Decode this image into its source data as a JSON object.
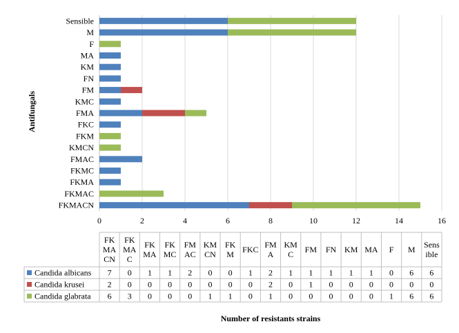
{
  "chart_data": {
    "type": "bar",
    "orientation": "horizontal",
    "stacked": true,
    "categories": [
      "FKMACN",
      "FKMAC",
      "FKMA",
      "FKMC",
      "FMAC",
      "KMCN",
      "FKM",
      "FKC",
      "FMA",
      "KMC",
      "FM",
      "FN",
      "KM",
      "MA",
      "F",
      "M",
      "Sensible"
    ],
    "table_headers": [
      [
        "FK",
        "MA",
        "CN"
      ],
      [
        "FK",
        "MA",
        "C"
      ],
      [
        "FK",
        "MA"
      ],
      [
        "FK",
        "MC"
      ],
      [
        "FM",
        "AC"
      ],
      [
        "KM",
        "CN"
      ],
      [
        "FK",
        "M"
      ],
      [
        "FKC"
      ],
      [
        "FM",
        "A"
      ],
      [
        "KM",
        "C"
      ],
      [
        "FM"
      ],
      [
        "FN"
      ],
      [
        "KM"
      ],
      [
        "MA"
      ],
      [
        "F"
      ],
      [
        "M"
      ],
      [
        "Sens",
        "ible"
      ]
    ],
    "series": [
      {
        "name": "Candida albicans",
        "color": "#4f81bd",
        "values": [
          7,
          0,
          1,
          1,
          2,
          0,
          0,
          1,
          2,
          1,
          1,
          1,
          1,
          1,
          0,
          6,
          6
        ]
      },
      {
        "name": "Candida krusei",
        "color": "#c0504d",
        "values": [
          2,
          0,
          0,
          0,
          0,
          0,
          0,
          0,
          2,
          0,
          1,
          0,
          0,
          0,
          0,
          0,
          0
        ]
      },
      {
        "name": "Candida glabrata",
        "color": "#9bbb59",
        "values": [
          6,
          3,
          0,
          0,
          0,
          1,
          1,
          0,
          1,
          0,
          0,
          0,
          0,
          0,
          1,
          6,
          6
        ]
      }
    ],
    "xlim": [
      0,
      16
    ],
    "xticks": [
      0,
      2,
      4,
      6,
      8,
      10,
      12,
      14,
      16
    ],
    "xlabel": "Number of resistants strains",
    "ylabel": "Antifungals",
    "grid": true,
    "legend": "data-table"
  }
}
